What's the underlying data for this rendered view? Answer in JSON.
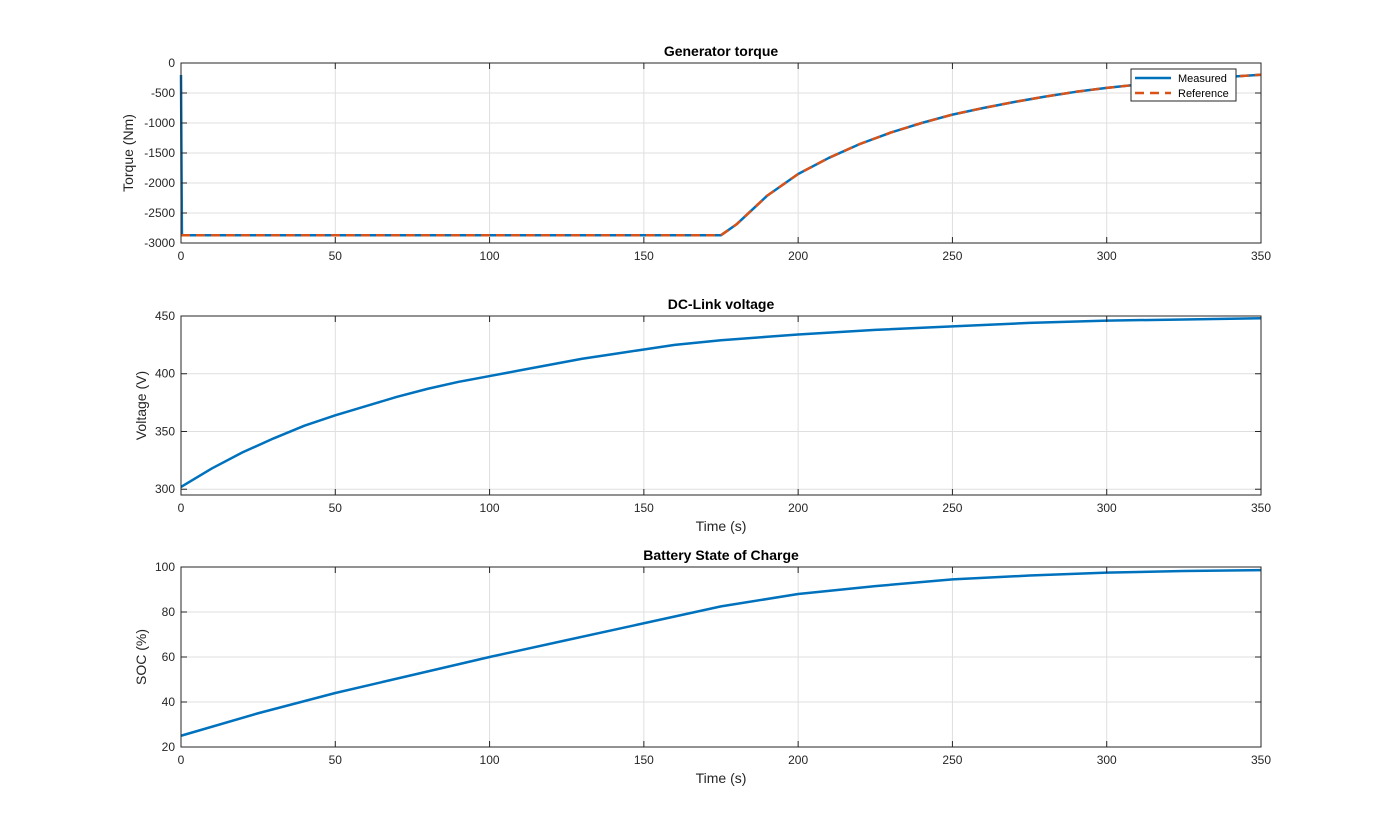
{
  "colors": {
    "measured": "#0072BD",
    "reference": "#D95319",
    "grid": "#dfdfdf",
    "axis": "#262626",
    "background": "#ffffff"
  },
  "chart_data": [
    {
      "type": "line",
      "title": "Generator torque",
      "xlabel": "",
      "ylabel": "Torque (Nm)",
      "xlim": [
        0,
        350
      ],
      "ylim": [
        -3000,
        0
      ],
      "xticks": [
        0,
        50,
        100,
        150,
        200,
        250,
        300,
        350
      ],
      "yticks": [
        -3000,
        -2500,
        -2000,
        -1500,
        -1000,
        -500,
        0
      ],
      "grid": true,
      "legend": {
        "position": "top-right",
        "entries": [
          "Measured",
          "Reference"
        ]
      },
      "series": [
        {
          "name": "Measured",
          "style": "solid",
          "x": [
            0,
            0.3,
            0.6,
            1,
            25,
            50,
            75,
            100,
            125,
            150,
            175,
            180,
            190,
            200,
            210,
            220,
            230,
            240,
            250,
            260,
            270,
            280,
            290,
            300,
            310,
            320,
            330,
            340,
            350
          ],
          "y": [
            -200,
            -2850,
            -2870,
            -2870,
            -2870,
            -2870,
            -2870,
            -2870,
            -2870,
            -2870,
            -2870,
            -2690,
            -2210,
            -1850,
            -1580,
            -1350,
            -1160,
            -1000,
            -860,
            -750,
            -650,
            -560,
            -480,
            -415,
            -360,
            -305,
            -265,
            -230,
            -195
          ]
        },
        {
          "name": "Reference",
          "style": "dashed",
          "x": [
            0,
            25,
            50,
            75,
            100,
            125,
            150,
            175,
            180,
            190,
            200,
            210,
            220,
            230,
            240,
            250,
            260,
            270,
            280,
            290,
            300,
            310,
            320,
            330,
            340,
            350
          ],
          "y": [
            -2870,
            -2870,
            -2870,
            -2870,
            -2870,
            -2870,
            -2870,
            -2870,
            -2690,
            -2210,
            -1850,
            -1580,
            -1350,
            -1160,
            -1000,
            -860,
            -750,
            -650,
            -560,
            -480,
            -415,
            -360,
            -305,
            -265,
            -230,
            -195
          ]
        }
      ]
    },
    {
      "type": "line",
      "title": "DC-Link voltage",
      "xlabel": "Time (s)",
      "ylabel": "Voltage (V)",
      "xlim": [
        0,
        350
      ],
      "ylim": [
        295,
        450
      ],
      "xticks": [
        0,
        50,
        100,
        150,
        200,
        250,
        300,
        350
      ],
      "yticks": [
        300,
        350,
        400,
        450
      ],
      "grid": true,
      "series": [
        {
          "style": "solid",
          "x": [
            0,
            10,
            20,
            30,
            40,
            50,
            60,
            70,
            80,
            90,
            100,
            110,
            120,
            130,
            140,
            150,
            160,
            175,
            190,
            200,
            225,
            250,
            275,
            300,
            325,
            350
          ],
          "y": [
            302,
            318,
            332,
            344,
            355,
            364,
            372,
            380,
            387,
            393,
            398,
            403,
            408,
            413,
            417,
            421,
            425,
            429,
            432,
            434,
            438,
            441,
            444,
            446,
            447,
            448
          ]
        }
      ]
    },
    {
      "type": "line",
      "title": "Battery State of Charge",
      "xlabel": "Time (s)",
      "ylabel": "SOC (%)",
      "xlim": [
        0,
        350
      ],
      "ylim": [
        20,
        100
      ],
      "xticks": [
        0,
        50,
        100,
        150,
        200,
        250,
        300,
        350
      ],
      "yticks": [
        20,
        40,
        60,
        80,
        100
      ],
      "grid": true,
      "series": [
        {
          "style": "solid",
          "x": [
            0,
            25,
            50,
            75,
            100,
            125,
            150,
            175,
            200,
            225,
            250,
            275,
            300,
            325,
            350
          ],
          "y": [
            25,
            35,
            44,
            52,
            60,
            67.5,
            75,
            82.5,
            88,
            91.5,
            94.5,
            96.2,
            97.5,
            98.2,
            98.6
          ]
        }
      ]
    }
  ]
}
